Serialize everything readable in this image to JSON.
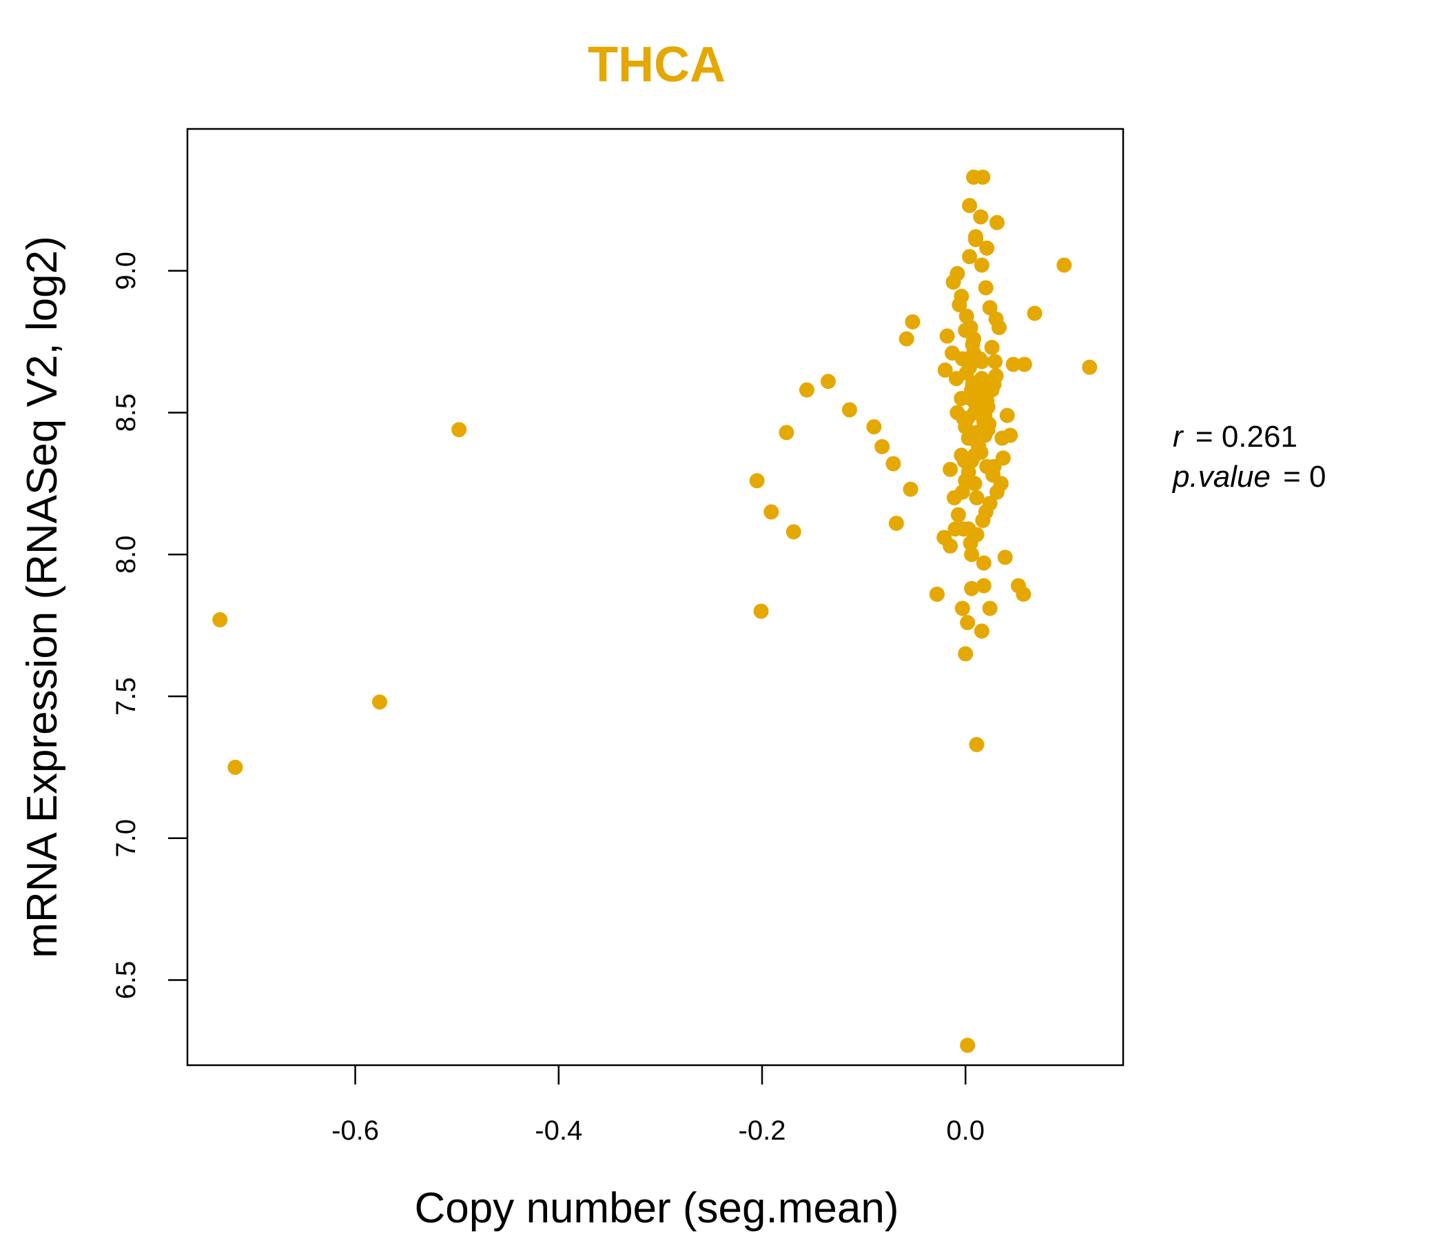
{
  "colors": {
    "accent": "#E5A800",
    "axis": "#000000",
    "background": "#ffffff"
  },
  "chart_data": {
    "type": "scatter",
    "title": "THCA",
    "xlabel": "Copy number (seg.mean)",
    "ylabel": "mRNA Expression (RNASeq V2, log2)",
    "xlim": [
      -0.765,
      0.155
    ],
    "ylim": [
      6.2,
      9.5
    ],
    "xticks": [
      -0.6,
      -0.4,
      -0.2,
      0.0
    ],
    "xtick_labels": [
      "-0.6",
      "-0.4",
      "-0.2",
      "0.0"
    ],
    "yticks": [
      6.5,
      7.0,
      7.5,
      8.0,
      8.5,
      9.0
    ],
    "ytick_labels": [
      "6.5",
      "7.0",
      "7.5",
      "8.0",
      "8.5",
      "9.0"
    ],
    "stats": {
      "r_label": "r",
      "r_value": "0.261",
      "p_label": "p.value",
      "p_value": "0"
    },
    "x": [
      -0.733,
      -0.718,
      -0.576,
      -0.498,
      -0.205,
      -0.201,
      -0.191,
      -0.169,
      -0.176,
      -0.156,
      -0.135,
      -0.114,
      -0.09,
      -0.082,
      -0.068,
      -0.071,
      -0.054,
      -0.052,
      -0.058,
      -0.015,
      -0.01,
      -0.015,
      -0.008,
      -0.02,
      -0.021,
      -0.028,
      -0.028,
      -0.003,
      0.0,
      0.002,
      0.006,
      0.011,
      0.016,
      0.018,
      0.002,
      0.008,
      0.017,
      0.031,
      0.004,
      0.01,
      0.015,
      0.021,
      0.097,
      0.068,
      0.122,
      0.058,
      0.047,
      0.033,
      0.036,
      0.028,
      0.041,
      0.039,
      0.052,
      0.057,
      0.024,
      0.018,
      0.006,
      0.003,
      0.02,
      -0.003,
      -0.004,
      0.0,
      0.011,
      0.016,
      0.029,
      0.026,
      0.03,
      0.035,
      0.037,
      0.044,
      0.019,
      0.013,
      0.007,
      0.0,
      -0.006,
      -0.012,
      -0.018,
      -0.013,
      -0.009,
      -0.004,
      0.002,
      0.009,
      0.015,
      0.021,
      0.027,
      0.031,
      0.024,
      0.017,
      0.011,
      0.005,
      -0.002,
      -0.007,
      -0.011,
      0.0,
      0.006,
      0.012,
      0.018,
      0.022,
      0.026,
      0.03,
      0.014,
      0.008,
      0.001,
      -0.004,
      -0.008,
      0.004,
      0.01,
      0.016,
      0.02,
      0.024,
      0.009,
      0.003,
      -0.001,
      0.012,
      0.018,
      0.007,
      0.013,
      0.019,
      0.005,
      0.011,
      0.015,
      0.001,
      0.008,
      0.014,
      0.02,
      0.006,
      0.012,
      -0.003,
      0.003,
      0.009,
      0.016,
      0.022,
      0.01,
      0.004,
      0.017,
      0.023,
      0.028,
      0.007,
      0.013,
      0.019,
      -0.002,
      0.005,
      0.011,
      0.016,
      0.021,
      0.009
    ],
    "y": [
      7.77,
      7.25,
      7.48,
      8.44,
      8.26,
      7.8,
      8.15,
      8.08,
      8.43,
      8.58,
      8.61,
      8.51,
      8.45,
      8.38,
      8.11,
      8.32,
      8.23,
      8.82,
      8.76,
      8.03,
      8.09,
      8.3,
      8.5,
      8.65,
      8.06,
      7.86,
      7.86,
      7.81,
      7.65,
      7.76,
      7.88,
      7.33,
      7.73,
      7.89,
      6.27,
      9.33,
      9.33,
      9.17,
      9.23,
      9.12,
      9.19,
      9.08,
      9.02,
      8.85,
      8.66,
      8.67,
      8.67,
      8.8,
      8.41,
      8.6,
      8.49,
      7.99,
      7.89,
      7.86,
      7.81,
      7.97,
      8.0,
      8.09,
      8.15,
      8.22,
      8.35,
      8.45,
      8.52,
      8.6,
      8.68,
      8.73,
      8.83,
      8.25,
      8.34,
      8.42,
      8.55,
      8.61,
      8.7,
      8.79,
      8.88,
      8.96,
      8.77,
      8.71,
      8.62,
      8.55,
      8.48,
      8.42,
      8.36,
      8.31,
      8.28,
      8.22,
      8.18,
      8.12,
      8.07,
      8.04,
      8.09,
      8.14,
      8.2,
      8.26,
      8.33,
      8.39,
      8.47,
      8.52,
      8.58,
      8.63,
      8.69,
      8.76,
      8.84,
      8.91,
      8.99,
      9.05,
      9.11,
      9.02,
      8.94,
      8.87,
      8.5,
      8.41,
      8.33,
      8.56,
      8.45,
      8.6,
      8.38,
      8.49,
      8.55,
      8.43,
      8.36,
      8.64,
      8.71,
      8.52,
      8.47,
      8.58,
      8.4,
      8.69,
      8.29,
      8.35,
      8.62,
      8.44,
      8.53,
      8.66,
      8.57,
      8.46,
      8.31,
      8.74,
      8.59,
      8.42,
      8.48,
      8.8,
      8.2,
      8.68,
      8.54,
      8.25
    ]
  }
}
